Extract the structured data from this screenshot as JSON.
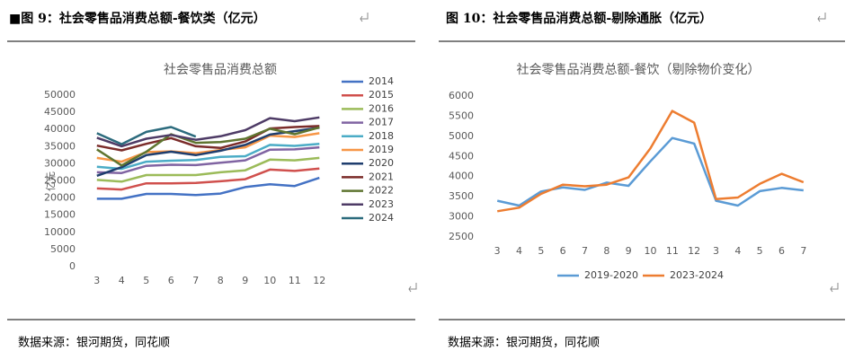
{
  "chart_data": [
    {
      "type": "line",
      "caption": "■图 9：社会零售品消费总额-餐饮类（亿元）",
      "source": "数据来源：银河期货，同花顺",
      "title": "社会零售品消费总额",
      "ylabel": "亿元",
      "categories": [
        "3",
        "4",
        "5",
        "6",
        "7",
        "8",
        "9",
        "10",
        "11",
        "12"
      ],
      "ylim": [
        0,
        50000
      ],
      "yticks": [
        0,
        5000,
        10000,
        15000,
        20000,
        25000,
        30000,
        35000,
        40000,
        45000,
        50000
      ],
      "legend": "right",
      "series": [
        {
          "name": "2014",
          "color": "#4472c4",
          "values": [
            19800,
            19800,
            21200,
            21200,
            20900,
            21300,
            23200,
            24000,
            23500,
            25900
          ]
        },
        {
          "name": "2015",
          "color": "#d0504d",
          "values": [
            22800,
            22500,
            24300,
            24300,
            24400,
            24900,
            25500,
            28300,
            27900,
            28600
          ]
        },
        {
          "name": "2016",
          "color": "#9bbb59",
          "values": [
            25300,
            24800,
            26700,
            26700,
            26700,
            27500,
            28100,
            31200,
            31000,
            31700
          ]
        },
        {
          "name": "2017",
          "color": "#8064a2",
          "values": [
            27500,
            27300,
            29400,
            29700,
            29600,
            30300,
            31000,
            34100,
            34200,
            34800
          ]
        },
        {
          "name": "2018",
          "color": "#4bacc6",
          "values": [
            29100,
            28500,
            30600,
            30900,
            31100,
            32000,
            32200,
            35500,
            35200,
            35800
          ]
        },
        {
          "name": "2019",
          "color": "#f79646",
          "values": [
            31700,
            30600,
            33400,
            33600,
            33100,
            34000,
            34800,
            38200,
            37800,
            38900
          ]
        },
        {
          "name": "2020",
          "color": "#1f3e6e",
          "values": [
            26500,
            29000,
            32500,
            33500,
            32500,
            33800,
            35500,
            38500,
            39500,
            40500
          ]
        },
        {
          "name": "2021",
          "color": "#7b2c2a",
          "values": [
            35300,
            33900,
            35800,
            37500,
            35100,
            34600,
            36500,
            40300,
            40700,
            41000
          ]
        },
        {
          "name": "2022",
          "color": "#5f7530",
          "values": [
            34200,
            29500,
            33500,
            38600,
            36100,
            36300,
            37300,
            40200,
            38600,
            40600
          ]
        },
        {
          "name": "2023",
          "color": "#4e3b66",
          "values": [
            37600,
            35100,
            37300,
            38400,
            37000,
            38000,
            39800,
            43300,
            42400,
            43500
          ]
        },
        {
          "name": "2024",
          "color": "#2c6b7d",
          "values": [
            38900,
            35700,
            39300,
            40700,
            37900,
            null,
            null,
            null,
            null,
            null
          ]
        }
      ]
    },
    {
      "type": "line",
      "caption": "图 10：社会零售品消费总额-剔除通胀（亿元）",
      "source": "数据来源：银河期货，同花顺",
      "title": "社会零售品消费总额-餐饮（剔除物价变化）",
      "categories": [
        "3",
        "4",
        "5",
        "6",
        "7",
        "8",
        "9",
        "10",
        "11",
        "12",
        "3",
        "4",
        "5",
        "6",
        "7"
      ],
      "ylim": [
        2500,
        6000
      ],
      "yticks": [
        2500,
        3000,
        3500,
        4000,
        4500,
        5000,
        5500,
        6000
      ],
      "legend": "bottom",
      "series": [
        {
          "name": "2019-2020",
          "color": "#5b9bd5",
          "values": [
            3400,
            3280,
            3630,
            3730,
            3670,
            3850,
            3770,
            4380,
            4960,
            4820,
            3400,
            3280,
            3640,
            3720,
            3660
          ]
        },
        {
          "name": "2023-2024",
          "color": "#ed7d31",
          "values": [
            3140,
            3230,
            3570,
            3800,
            3760,
            3800,
            3980,
            4700,
            5630,
            5340,
            3440,
            3480,
            3820,
            4070,
            3860
          ]
        }
      ]
    }
  ]
}
